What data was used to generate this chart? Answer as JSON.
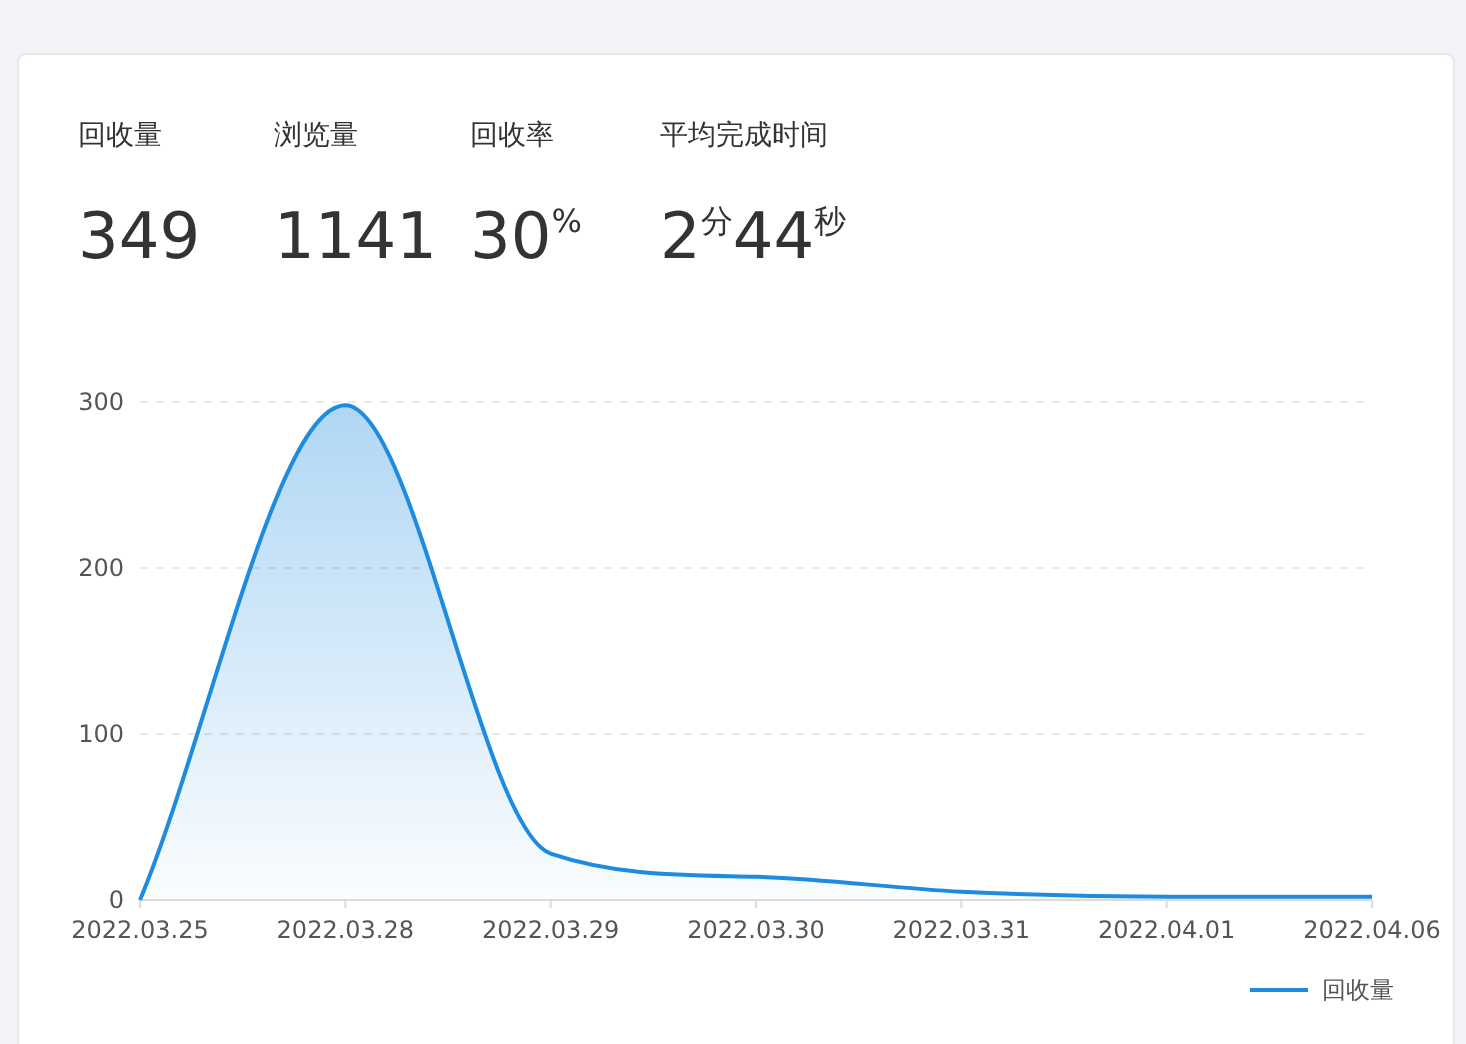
{
  "chart_data": [
    {
      "type": "other",
      "annotations": [
        "回收量",
        "349",
        "浏览量",
        "1141",
        "回收率",
        "30$^{%}$",
        "平均完成时间",
        "2$^{分}$44$^{秒}$"
      ]
    },
    {
      "type": "area",
      "categories": [
        "2022.03.25",
        "2022.03.28",
        "2022.03.29",
        "2022.03.30",
        "2022.03.31",
        "2022.04.01",
        "2022.04.06"
      ],
      "series": [
        {
          "name": "回收量",
          "color": "#1d8ce0",
          "values": [
            0,
            298,
            28,
            14,
            5,
            2,
            2
          ]
        }
      ],
      "ylim": [
        0,
        300
      ],
      "yticks": [
        0,
        100,
        200,
        300
      ],
      "grid": "y",
      "legend": "bottom right",
      "marker": "none",
      "line_style": "solid"
    }
  ]
}
